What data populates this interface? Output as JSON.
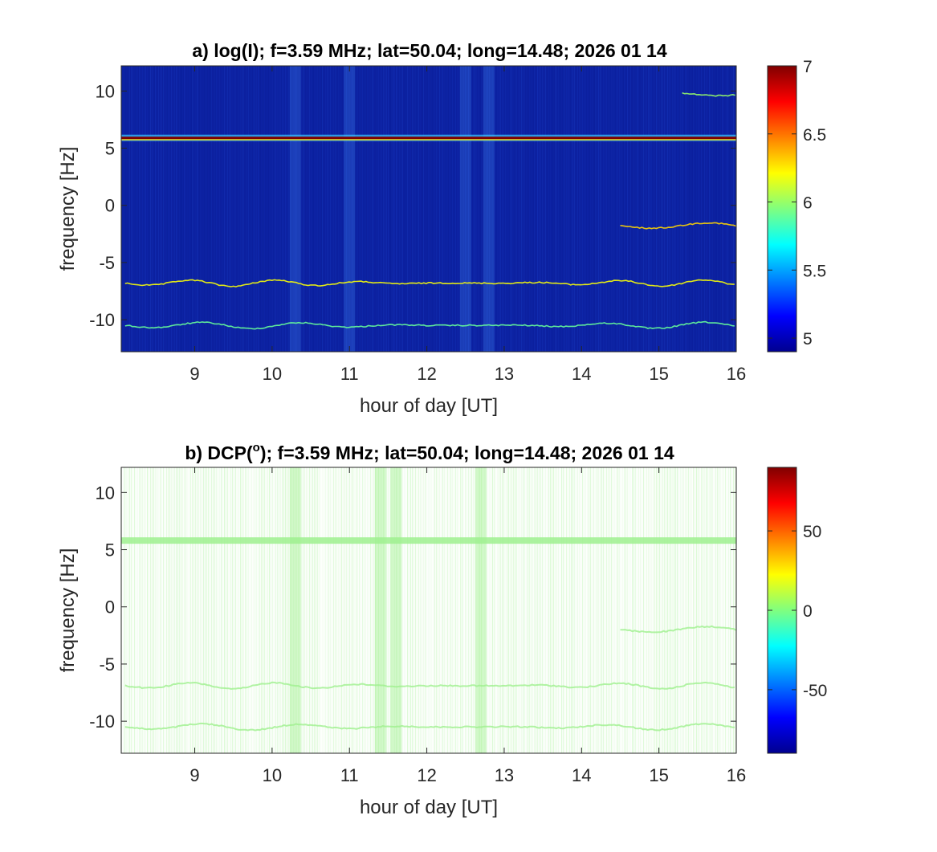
{
  "colors": {
    "heatmap_background": "#0b1f9e",
    "dcp_background": "#ffffff",
    "dcp_mark": "#9ff08f",
    "axis": "#262626"
  },
  "colormap": "jet",
  "chart_data": [
    {
      "type": "heatmap",
      "title": "a) log(I); f=3.59 MHz;  lat=50.04; long=14.48; 2026 01 14",
      "xlabel": "hour of day [UT]",
      "ylabel": "frequency [Hz]",
      "xlim": [
        8.05,
        16
      ],
      "ylim": [
        -12.8,
        12.2
      ],
      "xticks": [
        9,
        10,
        11,
        12,
        13,
        14,
        15,
        16
      ],
      "yticks": [
        10,
        5,
        0,
        -5,
        -10
      ],
      "colorbar": {
        "range": [
          4.9,
          7.0
        ],
        "ticks": [
          7,
          6.5,
          6,
          5.5,
          5
        ]
      },
      "features": [
        {
          "label": "carrier line",
          "y": 5.9,
          "x_range": [
            8.05,
            16
          ],
          "value": 7.0
        },
        {
          "label": "trace",
          "y": -6.8,
          "x_range": [
            8.1,
            16
          ],
          "value": 6.2
        },
        {
          "label": "trace",
          "y": -10.5,
          "x_range": [
            8.1,
            16
          ],
          "value": 5.9
        },
        {
          "label": "trace",
          "y": -1.8,
          "x_range": [
            14.5,
            16
          ],
          "value": 6.3
        },
        {
          "label": "trace",
          "y": 9.8,
          "x_range": [
            15.3,
            16
          ],
          "value": 6.0
        }
      ],
      "bright_vertical_bands": [
        10.3,
        11.0,
        12.5,
        12.8
      ]
    },
    {
      "type": "heatmap",
      "title": "b) DCP(°); f=3.59 MHz;  lat=50.04; long=14.48; 2026 01 14",
      "title_main": "b) DCP(",
      "title_sup": "o",
      "title_rest": "); f=3.59 MHz;  lat=50.04; long=14.48; 2026 01 14",
      "xlabel": "hour of day [UT]",
      "ylabel": "frequency [Hz]",
      "xlim": [
        8.05,
        16
      ],
      "ylim": [
        -12.8,
        12.2
      ],
      "xticks": [
        9,
        10,
        11,
        12,
        13,
        14,
        15,
        16
      ],
      "yticks": [
        10,
        5,
        0,
        -5,
        -10
      ],
      "colorbar": {
        "range": [
          -90,
          90
        ],
        "ticks": [
          50,
          0,
          -50
        ]
      },
      "features": [
        {
          "label": "carrier line",
          "y": 5.8,
          "x_range": [
            8.05,
            16
          ],
          "value": 10
        },
        {
          "label": "trace",
          "y": -6.9,
          "x_range": [
            8.1,
            16
          ],
          "value": 8
        },
        {
          "label": "trace",
          "y": -10.5,
          "x_range": [
            8.1,
            16
          ],
          "value": 8
        },
        {
          "label": "trace",
          "y": -2.0,
          "x_range": [
            14.5,
            16
          ],
          "value": 8
        }
      ],
      "bright_vertical_bands": [
        10.3,
        11.4,
        11.6,
        12.7
      ]
    }
  ]
}
